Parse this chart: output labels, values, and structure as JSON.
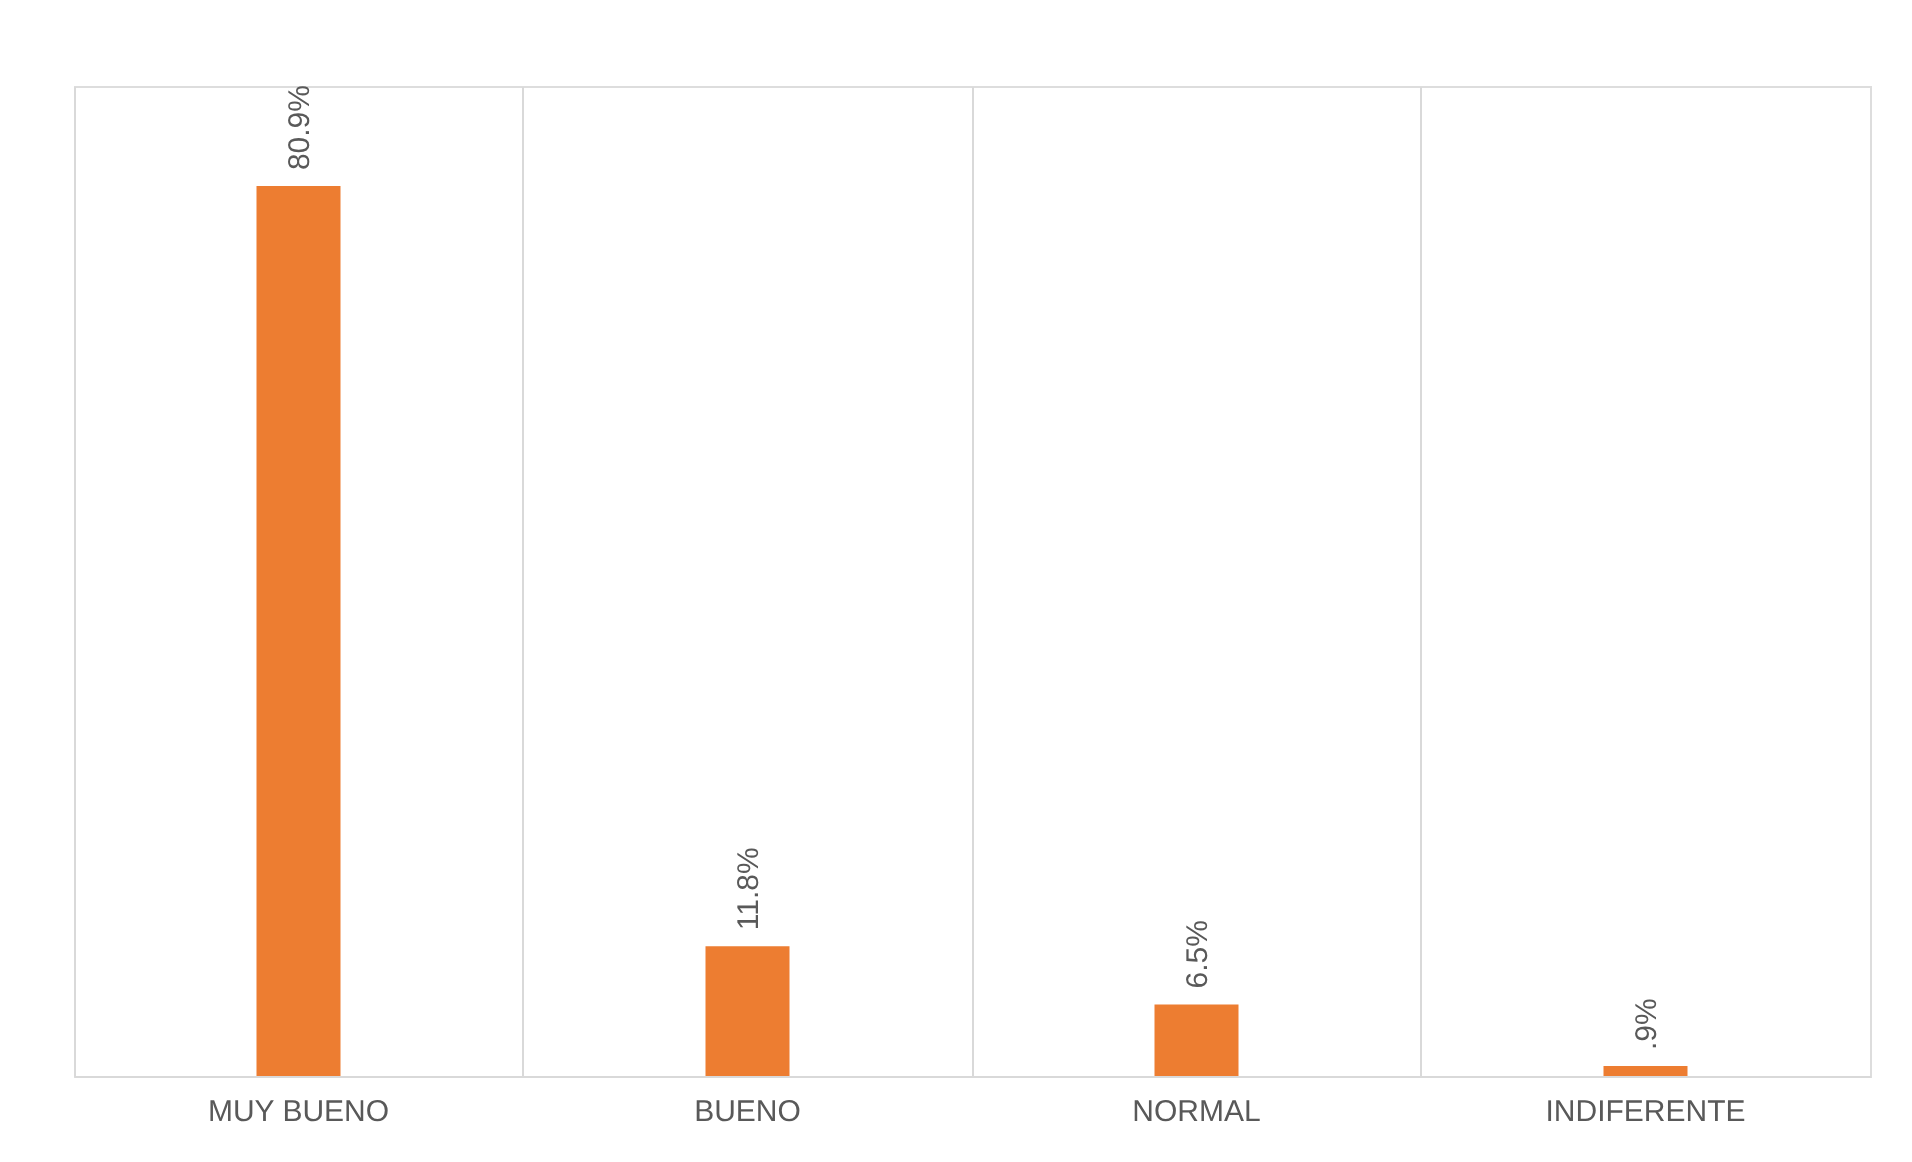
{
  "chart_data": {
    "type": "bar",
    "categories": [
      "MUY BUENO",
      "BUENO",
      "NORMAL",
      "INDIFERENTE"
    ],
    "values": [
      80.9,
      11.8,
      6.5,
      0.9
    ],
    "value_labels": [
      "80.9%",
      "11.8%",
      "6.5%",
      ".9%"
    ],
    "color": "#ed7d31",
    "grid": "x"
  }
}
